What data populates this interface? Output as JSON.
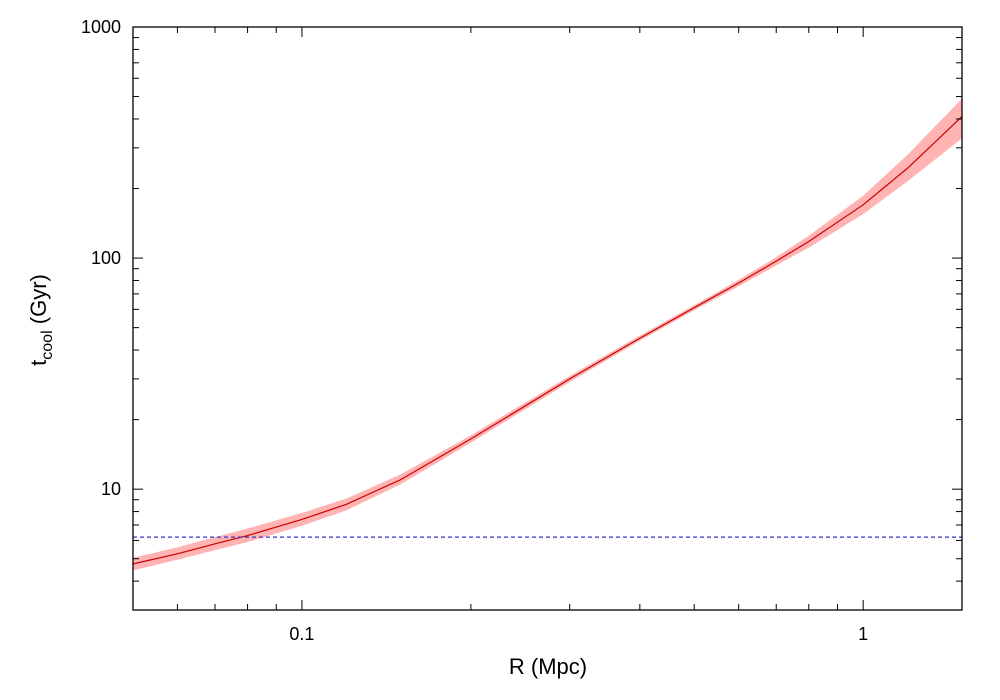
{
  "chart_data": {
    "type": "line",
    "title": "",
    "xlabel": "R (Mpc)",
    "ylabel": {
      "base": "t",
      "subscript": "cool",
      "suffix": " (Gyr)"
    },
    "x_scale": "log",
    "y_scale": "log",
    "xlim": [
      0.05,
      1.5
    ],
    "ylim": [
      3,
      1000
    ],
    "x_tick_labels": [
      {
        "value": 0.1,
        "label": "0.1"
      },
      {
        "value": 1,
        "label": "1"
      }
    ],
    "y_tick_labels": [
      {
        "value": 10,
        "label": "10"
      },
      {
        "value": 100,
        "label": "100"
      },
      {
        "value": 1000,
        "label": "1000"
      }
    ],
    "grid": false,
    "legend": "none",
    "series": [
      {
        "kind": "line-with-band",
        "color": "#cc0000",
        "band_color": "#ffb3b3",
        "points": [
          {
            "x": 0.05,
            "y": 4.75,
            "lo": 4.45,
            "hi": 5.05
          },
          {
            "x": 0.06,
            "y": 5.25,
            "lo": 4.95,
            "hi": 5.6
          },
          {
            "x": 0.07,
            "y": 5.8,
            "lo": 5.45,
            "hi": 6.2
          },
          {
            "x": 0.08,
            "y": 6.3,
            "lo": 5.9,
            "hi": 6.75
          },
          {
            "x": 0.1,
            "y": 7.4,
            "lo": 6.95,
            "hi": 7.9
          },
          {
            "x": 0.12,
            "y": 8.6,
            "lo": 8.1,
            "hi": 9.1
          },
          {
            "x": 0.15,
            "y": 11.0,
            "lo": 10.5,
            "hi": 11.6
          },
          {
            "x": 0.2,
            "y": 16.5,
            "lo": 15.9,
            "hi": 17.1
          },
          {
            "x": 0.3,
            "y": 30.0,
            "lo": 29.1,
            "hi": 30.9
          },
          {
            "x": 0.4,
            "y": 45.0,
            "lo": 43.9,
            "hi": 46.2
          },
          {
            "x": 0.5,
            "y": 61.0,
            "lo": 59.5,
            "hi": 62.5
          },
          {
            "x": 0.6,
            "y": 78.0,
            "lo": 75.5,
            "hi": 80.5
          },
          {
            "x": 0.7,
            "y": 97.0,
            "lo": 93.0,
            "hi": 101.0
          },
          {
            "x": 0.8,
            "y": 118.0,
            "lo": 111.0,
            "hi": 125.0
          },
          {
            "x": 1.0,
            "y": 170.0,
            "lo": 155.0,
            "hi": 186.0
          },
          {
            "x": 1.2,
            "y": 245.0,
            "lo": 215.0,
            "hi": 280.0
          },
          {
            "x": 1.5,
            "y": 410.0,
            "lo": 330.0,
            "hi": 490.0
          }
        ]
      },
      {
        "kind": "hline",
        "color": "#3333cc",
        "dashed": true,
        "y": 6.2
      }
    ]
  }
}
